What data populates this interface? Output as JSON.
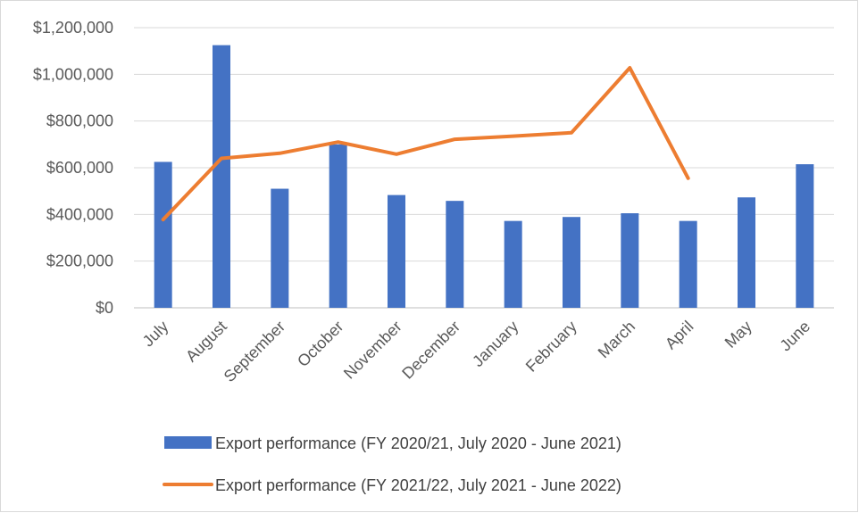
{
  "chart_data": {
    "type": "bar",
    "title": "",
    "xlabel": "",
    "ylabel": "",
    "categories": [
      "July",
      "August",
      "September",
      "October",
      "November",
      "December",
      "January",
      "February",
      "March",
      "April",
      "May",
      "June"
    ],
    "ylim": [
      0,
      1200000
    ],
    "yticks": [
      0,
      200000,
      400000,
      600000,
      800000,
      1000000,
      1200000
    ],
    "ytick_labels": [
      "$0",
      "$200,000",
      "$400,000",
      "$600,000",
      "$800,000",
      "$1,000,000",
      "$1,200,000"
    ],
    "grid": true,
    "legend_position": "bottom",
    "series": [
      {
        "name": "Export performance (FY 2020/21, July 2020 - June 2021)",
        "type": "bar",
        "color": "#4472C4",
        "values": [
          625000,
          1125000,
          510000,
          700000,
          483000,
          458000,
          372000,
          389000,
          405000,
          372000,
          473000,
          615000
        ]
      },
      {
        "name": "Export performance (FY 2021/22, July 2021 - June 2022)",
        "type": "line",
        "color": "#ED7D31",
        "values": [
          378000,
          640000,
          662000,
          710000,
          658000,
          722000,
          735000,
          750000,
          1028000,
          555000,
          null,
          null
        ]
      }
    ]
  }
}
